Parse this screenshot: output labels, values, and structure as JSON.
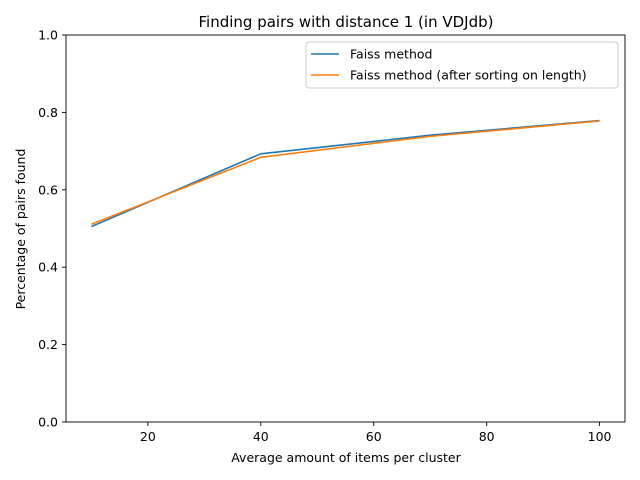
{
  "chart_data": {
    "type": "line",
    "title": "Finding pairs with distance 1 (in VDJdb)",
    "xlabel": "Average amount of items per cluster",
    "ylabel": "Percentage of pairs found",
    "xlim": [
      5.5,
      104.5
    ],
    "ylim": [
      0.0,
      1.0
    ],
    "xticks": [
      20,
      40,
      60,
      80,
      100
    ],
    "yticks": [
      0.0,
      0.2,
      0.4,
      0.6,
      0.8,
      1.0
    ],
    "xtick_labels": [
      "20",
      "40",
      "60",
      "80",
      "100"
    ],
    "ytick_labels": [
      "0.0",
      "0.2",
      "0.4",
      "0.6",
      "0.8",
      "1.0"
    ],
    "grid": false,
    "legend_position": "top-right",
    "series": [
      {
        "name": "Faiss method",
        "color": "#1f77b4",
        "x": [
          10,
          40,
          70,
          100
        ],
        "y": [
          0.505,
          0.693,
          0.741,
          0.779
        ]
      },
      {
        "name": "Faiss method (after sorting on length)",
        "color": "#ff7f0e",
        "x": [
          10,
          40,
          70,
          100
        ],
        "y": [
          0.511,
          0.684,
          0.738,
          0.778
        ]
      }
    ]
  }
}
